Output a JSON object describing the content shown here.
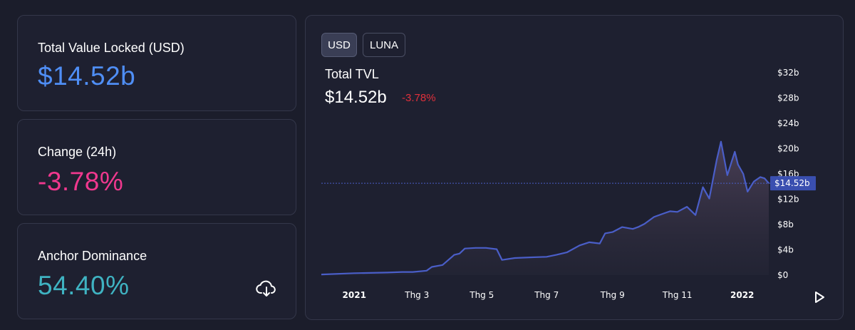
{
  "stats": {
    "tvl": {
      "label": "Total Value Locked (USD)",
      "value": "$14.52b",
      "color": "#4f8ef5"
    },
    "change": {
      "label": "Change (24h)",
      "value": "-3.78%",
      "color": "#f0388e"
    },
    "dominance": {
      "label": "Anchor Dominance",
      "value": "54.40%",
      "color": "#3fb3c2"
    },
    "download_icon": "cloud-download-icon"
  },
  "chart": {
    "toggles": [
      {
        "label": "USD",
        "active": true
      },
      {
        "label": "LUNA",
        "active": false
      }
    ],
    "title": "Total TVL",
    "value": "$14.52b",
    "change": "-3.78%",
    "play_icon": "play-icon",
    "colors": {
      "line": "#4a5ec8",
      "negative": "#e0303b",
      "badge": "#3a4fb0"
    }
  },
  "chart_data": {
    "type": "area",
    "title": "Total TVL",
    "xlabel": "",
    "ylabel": "",
    "x_tick_labels": [
      "2021",
      "Thg 3",
      "Thg 5",
      "Thg 7",
      "Thg 9",
      "Thg 11",
      "2022"
    ],
    "bold_tick_labels": [
      "2021",
      "2022"
    ],
    "y_tick_labels": [
      "$0",
      "$4b",
      "$8b",
      "$12b",
      "$16b",
      "$20b",
      "$24b",
      "$28b",
      "$32b"
    ],
    "ylim": [
      0,
      32
    ],
    "y_unit": "billion USD",
    "current_value_label": "$14.52b",
    "current_value": 14.52,
    "grid": false,
    "series": [
      {
        "x": [
          "2020-12-01",
          "2021-01-01",
          "2021-02-01",
          "2021-02-15",
          "2021-02-25",
          "2021-03-10",
          "2021-03-15",
          "2021-03-25",
          "2021-04-05",
          "2021-04-10",
          "2021-04-15",
          "2021-04-25",
          "2021-05-05",
          "2021-05-15",
          "2021-05-20",
          "2021-06-01",
          "2021-06-15",
          "2021-07-01",
          "2021-07-10",
          "2021-07-20",
          "2021-08-01",
          "2021-08-10",
          "2021-08-20",
          "2021-08-25",
          "2021-09-01",
          "2021-09-10",
          "2021-09-20",
          "2021-09-25",
          "2021-10-01",
          "2021-10-10",
          "2021-10-20",
          "2021-10-25",
          "2021-11-01",
          "2021-11-10",
          "2021-11-18",
          "2021-11-25",
          "2021-12-01",
          "2021-12-08",
          "2021-12-12",
          "2021-12-18",
          "2021-12-25",
          "2021-12-28",
          "2022-01-02",
          "2022-01-06",
          "2022-01-12",
          "2022-01-18",
          "2022-01-22",
          "2022-01-26"
        ],
        "y": [
          0.1,
          0.3,
          0.4,
          0.5,
          0.5,
          0.7,
          1.3,
          1.6,
          3.2,
          3.4,
          4.2,
          4.3,
          4.3,
          4.1,
          2.4,
          2.7,
          2.8,
          2.9,
          3.2,
          3.6,
          4.7,
          5.2,
          5.0,
          6.6,
          6.8,
          7.6,
          7.3,
          7.6,
          8.1,
          9.2,
          9.8,
          10.1,
          10.0,
          10.8,
          9.5,
          13.9,
          12.1,
          18.2,
          21.1,
          15.8,
          19.5,
          17.5,
          16.0,
          13.2,
          14.8,
          15.5,
          15.3,
          14.52
        ]
      }
    ]
  }
}
